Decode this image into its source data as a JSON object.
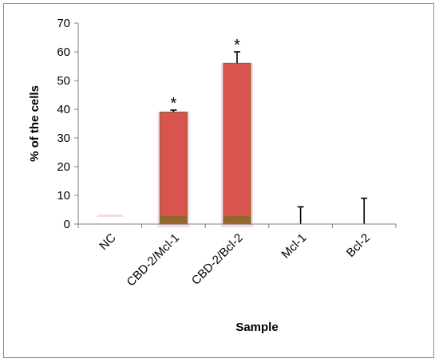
{
  "chart_data": {
    "type": "bar",
    "categories": [
      "NC",
      "CBD-2/Mcl-1",
      "CBD-2/Bcl-2",
      "Mcl-1",
      "Bcl-2"
    ],
    "values": [
      0,
      39,
      56,
      0,
      0
    ],
    "error_upper": [
      0,
      0.7,
      4,
      6,
      9
    ],
    "significance": [
      "",
      "*",
      "*",
      "",
      ""
    ],
    "xlabel": "Sample",
    "ylabel": "% of the cells",
    "ylim": [
      0,
      70
    ],
    "yticks": [
      0,
      10,
      20,
      30,
      40,
      50,
      60,
      70
    ],
    "grid": false,
    "legend": "none"
  },
  "colors": {
    "bar_fill": "#d9534f",
    "bar_border": "#8a6a2a",
    "bar_base": "#8a6a2a",
    "bar_glow": "#f2dde4",
    "axis": "#7f7f7f",
    "error": "#000000"
  }
}
